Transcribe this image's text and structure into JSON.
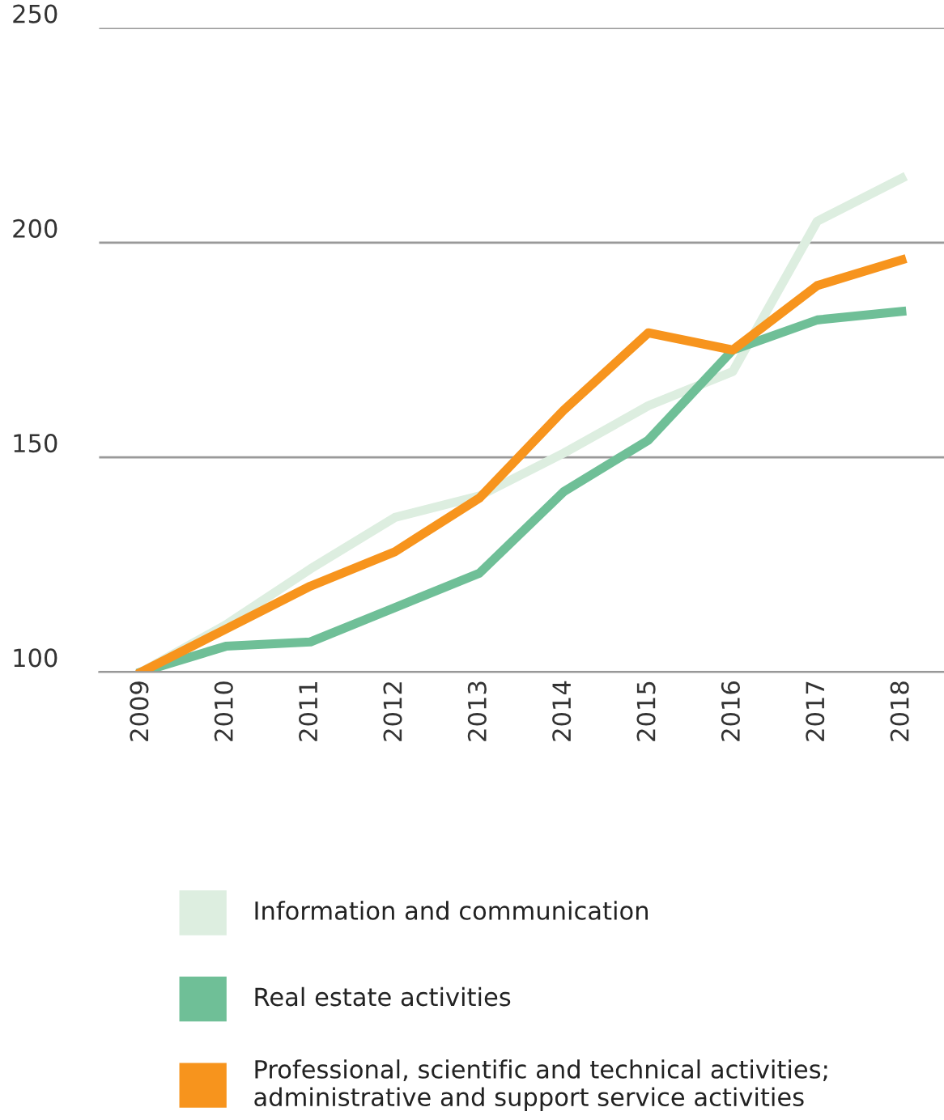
{
  "chart_data": {
    "type": "line",
    "categories": [
      "2009",
      "2010",
      "2011",
      "2012",
      "2013",
      "2014",
      "2015",
      "2016",
      "2017",
      "2018"
    ],
    "series": [
      {
        "name": "Information and communication",
        "color": "#ddeee0",
        "values": [
          100,
          111,
          124,
          136,
          141,
          151,
          162,
          170,
          205,
          215
        ]
      },
      {
        "name": "Real estate activities",
        "color": "#6fbf97",
        "values": [
          100,
          106,
          107,
          115,
          123,
          142,
          154,
          175,
          182,
          184
        ]
      },
      {
        "name": "Professional, scientific and technical activities; administrative and support service activities",
        "color": "#f7941d",
        "values": [
          100,
          110,
          120,
          128,
          140.5,
          161,
          179,
          175,
          190,
          196
        ]
      }
    ],
    "ylim": [
      100,
      250
    ],
    "yticks": [
      100,
      150,
      200,
      250
    ],
    "grid": "y",
    "legend": "bottom",
    "marker": "none",
    "line_style": "solid"
  }
}
